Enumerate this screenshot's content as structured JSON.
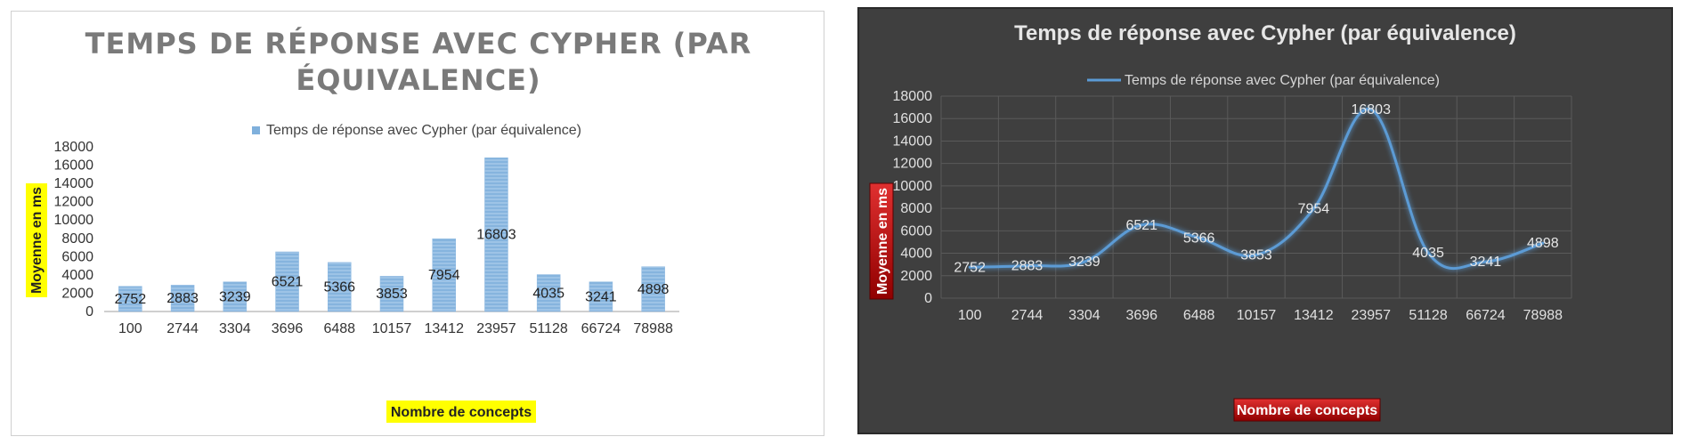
{
  "chart_data": [
    {
      "type": "bar",
      "title": "TEMPS DE RÉPONSE AVEC CYPHER (PAR ÉQUIVALENCE)",
      "title_lines": [
        "TEMPS DE RÉPONSE AVEC CYPHER (PAR",
        "ÉQUIVALENCE)"
      ],
      "legend": "Temps de réponse avec Cypher (par équivalence)",
      "legend_position": "top",
      "xlabel": "Nombre de concepts",
      "ylabel": "Moyenne en ms",
      "categories": [
        "100",
        "2744",
        "3304",
        "3696",
        "6488",
        "10157",
        "13412",
        "23957",
        "51128",
        "66724",
        "78988"
      ],
      "series": [
        {
          "name": "Temps de réponse avec Cypher (par équivalence)",
          "values": [
            2752,
            2883,
            3239,
            6521,
            5366,
            3853,
            7954,
            16803,
            4035,
            3241,
            4898
          ]
        }
      ],
      "ylim": [
        0,
        18000
      ],
      "yticks": [
        "0",
        "2000",
        "4000",
        "6000",
        "8000",
        "10000",
        "12000",
        "14000",
        "16000",
        "18000"
      ],
      "grid": false,
      "colors": {
        "bar": "#9dc3e6",
        "bar_stripe": "#7fb0dc",
        "axis_label_bg": "#ffff00"
      }
    },
    {
      "type": "line",
      "title": "Temps de réponse avec Cypher (par équivalence)",
      "legend": "Temps de réponse avec Cypher (par équivalence)",
      "legend_position": "top",
      "xlabel": "Nombre de concepts",
      "ylabel": "Moyenne en ms",
      "categories": [
        "100",
        "2744",
        "3304",
        "3696",
        "6488",
        "10157",
        "13412",
        "23957",
        "51128",
        "66724",
        "78988"
      ],
      "series": [
        {
          "name": "Temps de réponse avec Cypher (par équivalence)",
          "values": [
            2752,
            2883,
            3239,
            6521,
            5366,
            3853,
            7954,
            16803,
            4035,
            3241,
            4898
          ]
        }
      ],
      "ylim": [
        0,
        18000
      ],
      "yticks": [
        "0",
        "2000",
        "4000",
        "6000",
        "8000",
        "10000",
        "12000",
        "14000",
        "16000",
        "18000"
      ],
      "grid": true,
      "colors": {
        "background": "#3f3f3f",
        "grid": "#5a5a5a",
        "line": "#5b9bd5",
        "axis_label_bg": "#c00000"
      }
    }
  ]
}
